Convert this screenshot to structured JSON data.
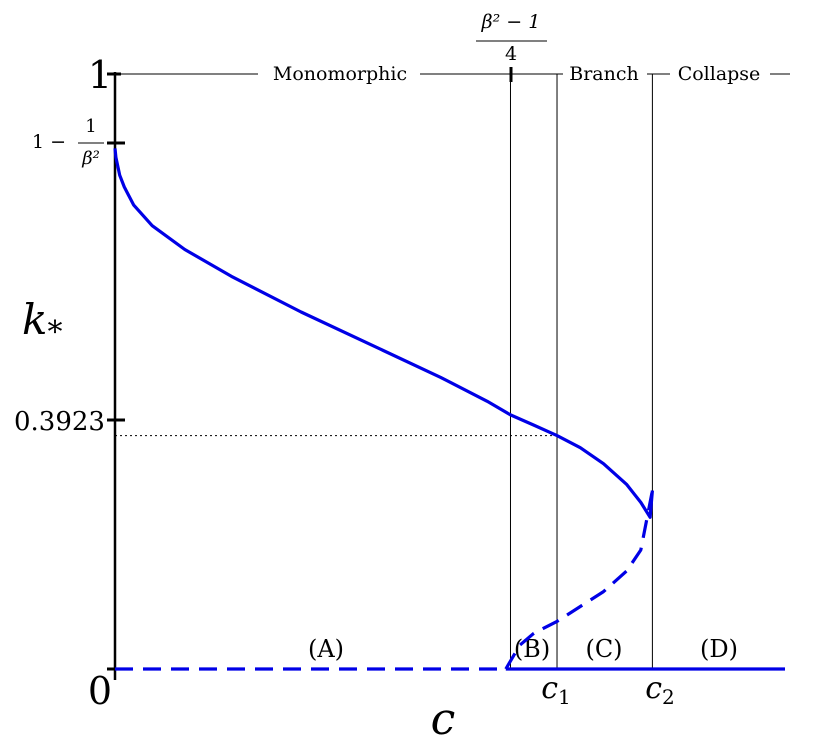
{
  "chart_data": {
    "type": "line",
    "title": "",
    "xlabel": "c",
    "ylabel": "k_*",
    "ylabel_main": "k",
    "ylabel_sub": "*",
    "xlim": [
      0,
      1.44
    ],
    "ylim": [
      0,
      1
    ],
    "x_origin_label": "0",
    "y_ticks": [
      {
        "value": 1,
        "label": "1"
      },
      {
        "value": 0.875,
        "label_prefix": "1 − ",
        "label_num": "1",
        "label_den": "β²"
      },
      {
        "value": 0.3923,
        "label": "0.3923"
      }
    ],
    "x_marks": [
      {
        "name": "beta-frac",
        "value": 0.85,
        "label_num": "β² − 1",
        "label_den": "4"
      },
      {
        "name": "c1",
        "value": 0.95,
        "label_main": "c",
        "label_sub": "1"
      },
      {
        "name": "c2",
        "value": 1.155,
        "label_main": "c",
        "label_sub": "2"
      }
    ],
    "phase_labels": [
      "Monomorphic",
      "Branch",
      "Collapse"
    ],
    "region_labels": [
      {
        "label": "(A)",
        "x": 0.455
      },
      {
        "label": "(B)",
        "x": 0.9
      },
      {
        "label": "(C)",
        "x": 1.053
      },
      {
        "label": "(D)",
        "x": 1.3
      }
    ],
    "reference_line": {
      "y": 0.3923,
      "x_end": 0.95,
      "style": "dotted"
    },
    "series": [
      {
        "style": "solid",
        "color": "#0000e6",
        "x": [
          0.0,
          0.002,
          0.01,
          0.02,
          0.04,
          0.08,
          0.15,
          0.25,
          0.4,
          0.55,
          0.7,
          0.8,
          0.85,
          0.9,
          0.95,
          1.0,
          1.05,
          1.1,
          1.13,
          1.15,
          1.155
        ],
        "y": [
          0.875,
          0.86,
          0.83,
          0.81,
          0.78,
          0.745,
          0.705,
          0.66,
          0.6,
          0.545,
          0.49,
          0.45,
          0.427,
          0.41,
          0.3923,
          0.372,
          0.345,
          0.31,
          0.28,
          0.255,
          0.3
        ]
      },
      {
        "style": "dashed",
        "color": "#0000e6",
        "x": [
          0.84,
          0.87,
          0.9,
          0.95,
          1.0,
          1.05,
          1.1,
          1.13,
          1.155
        ],
        "y": [
          0.0,
          0.04,
          0.06,
          0.08,
          0.105,
          0.13,
          0.165,
          0.2,
          0.3
        ]
      },
      {
        "style": "dashed",
        "color": "#0000e6",
        "x": [
          0.0,
          0.84
        ],
        "y": [
          0.0,
          0.0
        ]
      },
      {
        "style": "solid",
        "color": "#0000e6",
        "x": [
          0.84,
          1.44
        ],
        "y": [
          0.0,
          0.0
        ]
      }
    ]
  }
}
